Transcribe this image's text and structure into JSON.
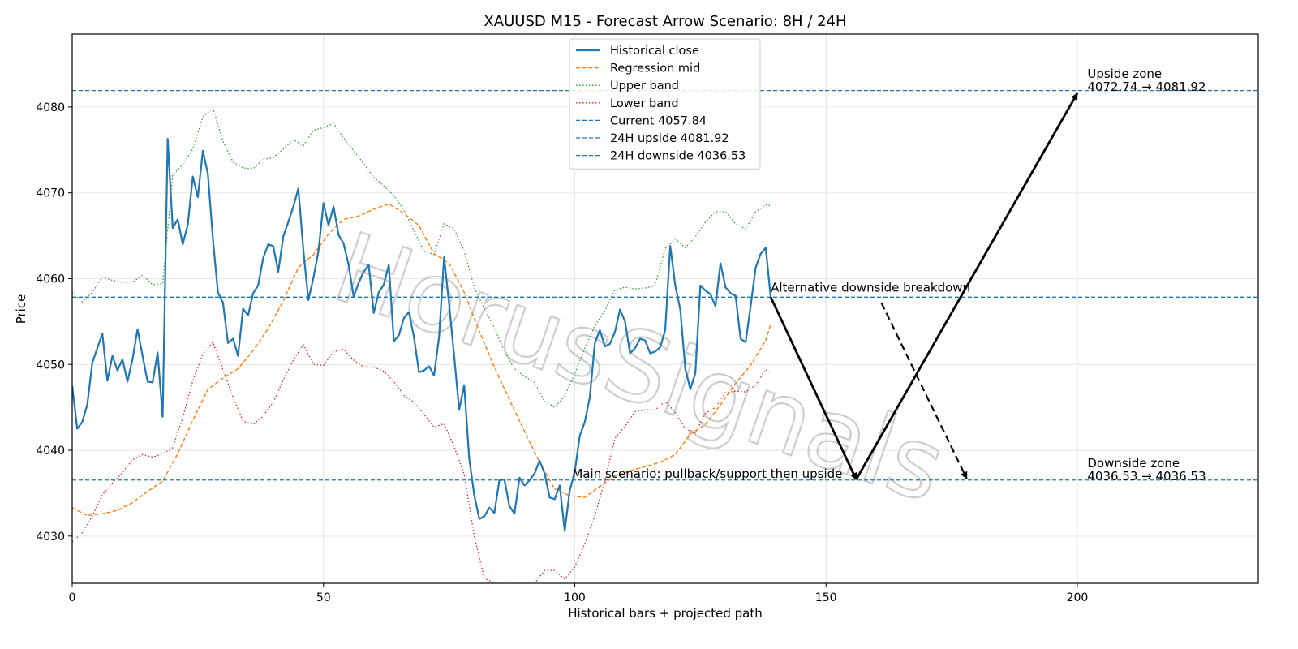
{
  "chart_data": {
    "type": "line",
    "title": "XAUUSD M15 - Forecast Arrow Scenario: 8H / 24H",
    "xlabel": "Historical bars + projected path",
    "ylabel": "Price",
    "xlim": [
      0,
      236
    ],
    "ylim": [
      4024.5,
      4088.5
    ],
    "xticks": [
      0,
      50,
      100,
      150,
      200
    ],
    "yticks": [
      4030,
      4040,
      4050,
      4060,
      4070,
      4080
    ],
    "grid": true,
    "legend_position": "top-center",
    "colors": {
      "historical": "#1f77b4",
      "regression": "#ff7f0e",
      "upper": "#2ca02c",
      "lower": "#d62728",
      "hline": "#1f77b4",
      "arrow": "#000000",
      "watermark": "#bdbdbd"
    },
    "legend": [
      {
        "label": "Historical close",
        "key": "historical"
      },
      {
        "label": "Regression mid",
        "key": "regression"
      },
      {
        "label": "Upper band",
        "key": "upper"
      },
      {
        "label": "Lower band",
        "key": "lower"
      },
      {
        "label": "Current 4057.84",
        "key": "current"
      },
      {
        "label": "24H upside 4081.92",
        "key": "upside"
      },
      {
        "label": "24H downside 4036.53",
        "key": "downside"
      }
    ],
    "series": {
      "historical": {
        "name": "Historical close",
        "x": [
          0,
          1,
          2,
          3,
          4,
          5,
          6,
          7,
          8,
          9,
          10,
          11,
          12,
          13,
          14,
          15,
          16,
          17,
          18,
          19,
          20,
          21,
          22,
          23,
          24,
          25,
          26,
          27,
          28,
          29,
          30,
          31,
          32,
          33,
          34,
          35,
          36,
          37,
          38,
          39,
          40,
          41,
          42,
          43,
          44,
          45,
          46,
          47,
          48,
          49,
          50,
          51,
          52,
          53,
          54,
          55,
          56,
          57,
          58,
          59,
          60,
          61,
          62,
          63,
          64,
          65,
          66,
          67,
          68,
          69,
          70,
          71,
          72,
          73,
          74,
          75,
          76,
          77,
          78,
          79,
          80,
          81,
          82,
          83,
          84,
          85,
          86,
          87,
          88,
          89,
          90,
          91,
          92,
          93,
          94,
          95,
          96,
          97,
          98,
          99,
          100,
          101,
          102,
          103,
          104,
          105,
          106,
          107,
          108,
          109,
          110,
          111,
          112,
          113,
          114,
          115,
          116,
          117,
          118,
          119,
          120,
          121,
          122,
          123,
          124,
          125,
          126,
          127,
          128,
          129,
          130,
          131,
          132,
          133,
          134,
          135,
          136,
          137,
          138,
          139
        ],
        "y": [
          4047.5,
          4042.5,
          4043.3,
          4045.3,
          4050.2,
          4051.9,
          4053.6,
          4048.1,
          4051.0,
          4049.3,
          4050.6,
          4048.0,
          4050.6,
          4054.1,
          4051.0,
          4048.0,
          4047.9,
          4051.4,
          4043.9,
          4076.3,
          4065.9,
          4066.9,
          4064.0,
          4066.3,
          4071.9,
          4069.5,
          4074.9,
          4072.2,
          4064.6,
          4058.4,
          4057.2,
          4052.5,
          4053.0,
          4051.0,
          4056.5,
          4055.7,
          4058.3,
          4059.2,
          4062.4,
          4064.0,
          4063.8,
          4060.8,
          4064.9,
          4066.6,
          4068.4,
          4070.5,
          4063.3,
          4057.5,
          4060.1,
          4063.2,
          4068.8,
          4066.2,
          4068.4,
          4065.1,
          4064.1,
          4061.6,
          4057.9,
          4059.5,
          4060.8,
          4061.6,
          4056.0,
          4058.4,
          4059.3,
          4061.6,
          4052.7,
          4053.4,
          4055.4,
          4056.1,
          4053.2,
          4049.1,
          4049.3,
          4049.8,
          4048.7,
          4053.2,
          4062.5,
          4057.0,
          4051.0,
          4044.7,
          4047.6,
          4039.0,
          4034.8,
          4032.0,
          4032.3,
          4033.3,
          4032.7,
          4036.5,
          4036.6,
          4033.5,
          4032.6,
          4036.8,
          4035.9,
          4036.5,
          4037.3,
          4038.8,
          4037.3,
          4034.5,
          4034.3,
          4035.9,
          4030.6,
          4035.3,
          4037.5,
          4041.7,
          4043.3,
          4046.2,
          4052.5,
          4054.0,
          4052.1,
          4052.4,
          4053.8,
          4056.4,
          4055.0,
          4051.3,
          4051.9,
          4053.0,
          4052.8,
          4051.3,
          4051.5,
          4052.0,
          4054.0,
          4063.8,
          4059.2,
          4056.4,
          4049.5,
          4047.1,
          4049.0,
          4059.2,
          4058.6,
          4058.2,
          4056.8,
          4061.8,
          4059.0,
          4058.3,
          4058.0,
          4053.0,
          4052.6,
          4056.8,
          4061.3,
          4062.9,
          4063.6,
          4057.8
        ]
      },
      "regression": {
        "name": "Regression mid",
        "x": [
          0,
          3,
          6,
          9,
          12,
          15,
          18,
          21,
          24,
          27,
          30,
          33,
          36,
          39,
          42,
          45,
          48,
          51,
          54,
          57,
          60,
          63,
          66,
          69,
          72,
          75,
          78,
          81,
          84,
          87,
          90,
          93,
          96,
          99,
          102,
          105,
          108,
          111,
          114,
          117,
          120,
          123,
          126,
          129,
          132,
          135,
          138,
          139
        ],
        "y": [
          4033.3,
          4032.4,
          4032.6,
          4033.0,
          4033.9,
          4035.2,
          4036.4,
          4039.6,
          4043.5,
          4047.1,
          4048.4,
          4049.5,
          4051.6,
          4054.2,
          4057.4,
          4061.3,
          4062.8,
          4065.2,
          4066.9,
          4067.3,
          4068.1,
          4068.7,
          4067.6,
          4066.2,
          4062.9,
          4061.8,
          4058.4,
          4053.9,
          4049.7,
          4045.9,
          4042.2,
          4038.6,
          4035.5,
          4034.7,
          4034.5,
          4035.8,
          4037.0,
          4037.6,
          4038.1,
          4038.6,
          4039.5,
          4041.9,
          4043.0,
          4045.3,
          4047.8,
          4049.9,
          4052.8,
          4054.7
        ]
      },
      "upper": {
        "name": "Upper band",
        "x": [
          0,
          2,
          4,
          6,
          8,
          10,
          12,
          14,
          16,
          18,
          20,
          22,
          24,
          26,
          28,
          30,
          32,
          34,
          36,
          38,
          40,
          42,
          44,
          46,
          48,
          50,
          52,
          54,
          56,
          58,
          60,
          62,
          64,
          66,
          68,
          70,
          72,
          74,
          76,
          78,
          80,
          82,
          84,
          86,
          88,
          90,
          92,
          94,
          96,
          98,
          100,
          102,
          104,
          106,
          108,
          110,
          112,
          114,
          116,
          118,
          120,
          122,
          124,
          126,
          128,
          130,
          132,
          134,
          136,
          138,
          139
        ],
        "y": [
          4058.4,
          4057.3,
          4058.4,
          4060.2,
          4059.8,
          4059.6,
          4059.6,
          4060.4,
          4059.3,
          4059.4,
          4072.1,
          4073.3,
          4075.1,
          4078.8,
          4079.9,
          4076.0,
          4073.6,
          4072.9,
          4072.8,
          4073.9,
          4074.1,
          4075.1,
          4076.2,
          4075.5,
          4077.3,
          4077.6,
          4078.1,
          4076.4,
          4074.9,
          4073.4,
          4071.8,
          4070.8,
          4069.7,
          4068.0,
          4065.6,
          4063.2,
          4062.8,
          4066.4,
          4065.8,
          4063.2,
          4059.0,
          4056.5,
          4054.3,
          4051.5,
          4049.5,
          4048.6,
          4047.9,
          4045.7,
          4045.0,
          4046.3,
          4048.9,
          4051.9,
          4054.5,
          4056.3,
          4058.7,
          4059.0,
          4058.8,
          4058.9,
          4059.2,
          4063.5,
          4064.6,
          4063.6,
          4064.9,
          4066.6,
          4067.8,
          4067.8,
          4066.4,
          4065.8,
          4067.8,
          4068.6,
          4068.5
        ]
      },
      "lower": {
        "name": "Lower band",
        "x": [
          0,
          2,
          4,
          6,
          8,
          10,
          12,
          14,
          16,
          18,
          20,
          22,
          24,
          26,
          28,
          30,
          32,
          34,
          36,
          38,
          40,
          42,
          44,
          46,
          48,
          50,
          52,
          54,
          56,
          58,
          60,
          62,
          64,
          66,
          68,
          70,
          72,
          74,
          76,
          78,
          80,
          82,
          84,
          86,
          88,
          90,
          92,
          94,
          96,
          98,
          100,
          102,
          104,
          106,
          108,
          110,
          112,
          114,
          116,
          118,
          120,
          122,
          124,
          126,
          128,
          130,
          132,
          134,
          136,
          138,
          139
        ],
        "y": [
          4029.3,
          4030.4,
          4032.3,
          4034.8,
          4036.2,
          4037.4,
          4038.9,
          4039.5,
          4039.2,
          4039.6,
          4040.3,
          4043.8,
          4048.1,
          4051.2,
          4052.6,
          4049.4,
          4046.2,
          4043.4,
          4043.0,
          4044.0,
          4045.6,
          4048.2,
          4050.5,
          4052.3,
          4050.0,
          4049.9,
          4051.5,
          4051.8,
          4050.5,
          4049.7,
          4049.7,
          4049.2,
          4048.0,
          4046.4,
          4045.6,
          4044.2,
          4042.7,
          4043.1,
          4040.4,
          4037.2,
          4030.0,
          4025.1,
          4024.5,
          4024.5,
          4024.5,
          4024.5,
          4024.5,
          4026.0,
          4026.0,
          4025.0,
          4026.4,
          4029.1,
          4032.4,
          4036.5,
          4041.4,
          4042.8,
          4044.5,
          4044.7,
          4044.7,
          4045.7,
          4044.4,
          4042.5,
          4042.0,
          4044.3,
          4045.0,
          4046.7,
          4046.9,
          4046.8,
          4047.6,
          4049.4,
          4049.0
        ]
      }
    },
    "hlines": [
      {
        "name": "Current 4057.84",
        "y": 4057.84,
        "key": "current"
      },
      {
        "name": "24H upside 4081.92",
        "y": 4081.92,
        "key": "upside"
      },
      {
        "name": "24H downside 4036.53",
        "y": 4036.53,
        "key": "downside"
      }
    ],
    "arrows": [
      {
        "name": "main-down",
        "from": [
          139,
          4057.84
        ],
        "to": [
          156,
          4036.6
        ],
        "style": "solid"
      },
      {
        "name": "main-up",
        "from": [
          156,
          4036.6
        ],
        "to": [
          200,
          4081.6
        ],
        "style": "solid"
      },
      {
        "name": "alt-down",
        "from": [
          161,
          4057.2
        ],
        "to": [
          178,
          4036.7
        ],
        "style": "dashed"
      }
    ],
    "annotations": [
      {
        "text": "Alternative downside breakdown",
        "x": 139,
        "y": 4058.5
      },
      {
        "text": "Main scenario: pullback/support then upside",
        "x": 99.5,
        "y": 4036.8
      },
      {
        "text": "Upside zone",
        "x": 202,
        "y": 4083.4
      },
      {
        "text": "4072.74 → 4081.92",
        "x": 202,
        "y": 4081.9
      },
      {
        "text": "Downside zone",
        "x": 202,
        "y": 4038.0
      },
      {
        "text": "4036.53 → 4036.53",
        "x": 202,
        "y": 4036.5
      }
    ],
    "watermark": "HorusSignals"
  }
}
